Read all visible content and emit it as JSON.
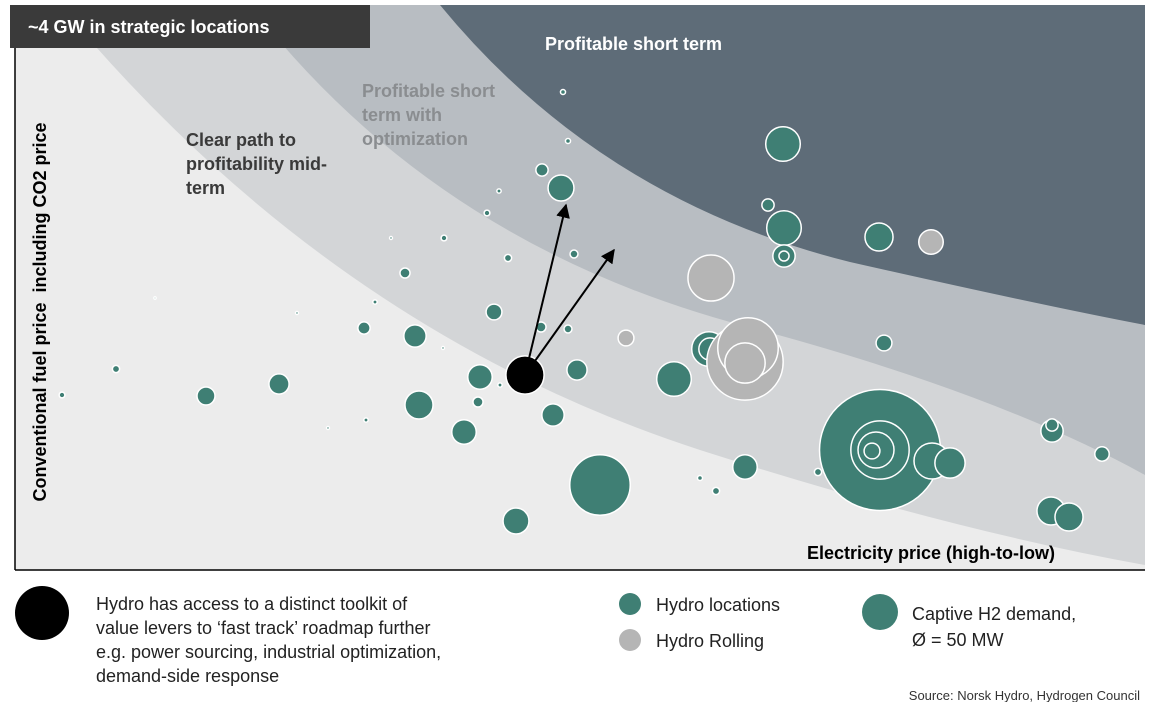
{
  "chart_data": {
    "type": "bubble",
    "title": "~4 GW in strategic locations",
    "x_label": "Electricity price (high-to-low)",
    "y_label": "Conventional fuel price  including CO2 price",
    "xlim": [
      0,
      113
    ],
    "ylim": [
      0,
      56.5
    ],
    "annotations": [
      {
        "lines": [
          "Profitable short term"
        ],
        "color": "#ffffff"
      },
      {
        "lines": [
          "Profitable short",
          "term with",
          "optimization"
        ],
        "color": "#8a8d90"
      },
      {
        "lines": [
          "Clear path to",
          "profitability mid-",
          "term"
        ],
        "color": "#3a3a3a"
      }
    ],
    "series": [
      {
        "name": "Hydro locations",
        "color": "#3f7f74",
        "x": [
          4.7,
          10.1,
          19.1,
          26.4,
          28.2,
          31.3,
          35.1,
          34.9,
          36.0,
          37.6,
          39.0,
          40.0,
          40.4,
          42.8,
          42.9,
          44.9,
          46.3,
          46.5,
          47.2,
          47.9,
          48.4,
          48.5,
          49.3,
          50.1,
          52.6,
          52.7,
          53.8,
          54.6,
          55.3,
          54.8,
          55.9,
          55.3,
          56.2,
          58.5,
          65.9,
          68.5,
          70.1,
          73.0,
          69.4,
          69.5,
          76.8,
          75.3,
          76.9,
          76.9,
          76.9,
          86.4,
          86.9,
          80.3,
          86.5,
          86.5,
          86.1,
          85.7,
          91.7,
          93.5,
          103.7,
          103.7,
          103.6,
          105.4,
          108.7,
          14.0
        ],
        "values": [
          17.5,
          20.1,
          17.4,
          18.6,
          25.7,
          14.2,
          15.0,
          24.2,
          26.8,
          33.2,
          29.7,
          23.4,
          16.5,
          22.2,
          33.2,
          13.8,
          16.8,
          19.3,
          35.7,
          25.8,
          37.9,
          18.5,
          31.2,
          4.9,
          24.3,
          40.0,
          15.5,
          38.2,
          42.9,
          47.8,
          31.6,
          24.1,
          20.0,
          8.5,
          19.1,
          9.2,
          7.9,
          10.3,
          22.1,
          22.1,
          42.6,
          36.5,
          34.2,
          31.4,
          31.4,
          33.3,
          22.7,
          9.8,
          12.0,
          12.0,
          12.0,
          11.9,
          10.9,
          10.7,
          13.9,
          14.5,
          5.9,
          5.3,
          11.6,
          27.2
        ],
        "sizes": [
          8,
          10,
          25,
          28,
          4,
          4,
          6,
          17,
          6,
          4,
          14,
          31,
          39,
          4,
          8,
          34,
          14,
          34,
          8,
          22,
          6,
          6,
          10,
          36,
          14,
          17,
          31,
          36,
          7,
          7,
          11,
          11,
          28,
          84,
          48,
          7,
          10,
          34,
          48,
          31,
          48,
          17,
          48,
          31,
          14,
          39,
          22,
          10,
          168,
          81,
          50,
          22,
          50,
          42,
          31,
          17,
          39,
          39,
          20,
          3
        ]
      },
      {
        "name": "Hydro Rolling",
        "color": "#b5b5b5",
        "x": [
          61.1,
          69.6,
          73.0,
          73.3,
          73.0,
          91.6
        ],
        "values": [
          23.2,
          29.2,
          20.8,
          22.2,
          20.7,
          32.8
        ],
        "sizes": [
          22,
          64,
          106,
          84,
          56,
          34
        ]
      }
    ],
    "highlight": {
      "color": "#000000",
      "x": 51.0,
      "y": 19.5,
      "size": 53,
      "note": [
        "Hydro has access to a distinct toolkit of",
        "value levers to ‘fast track’ roadmap further",
        "e.g. power sourcing, industrial optimization,",
        "demand-side response"
      ]
    },
    "size_legend": {
      "size": 50,
      "lines": [
        "Captive H2 demand,",
        "Ø = 50 MW"
      ]
    },
    "source": "Source: Norsk Hydro, Hydrogen Council"
  }
}
